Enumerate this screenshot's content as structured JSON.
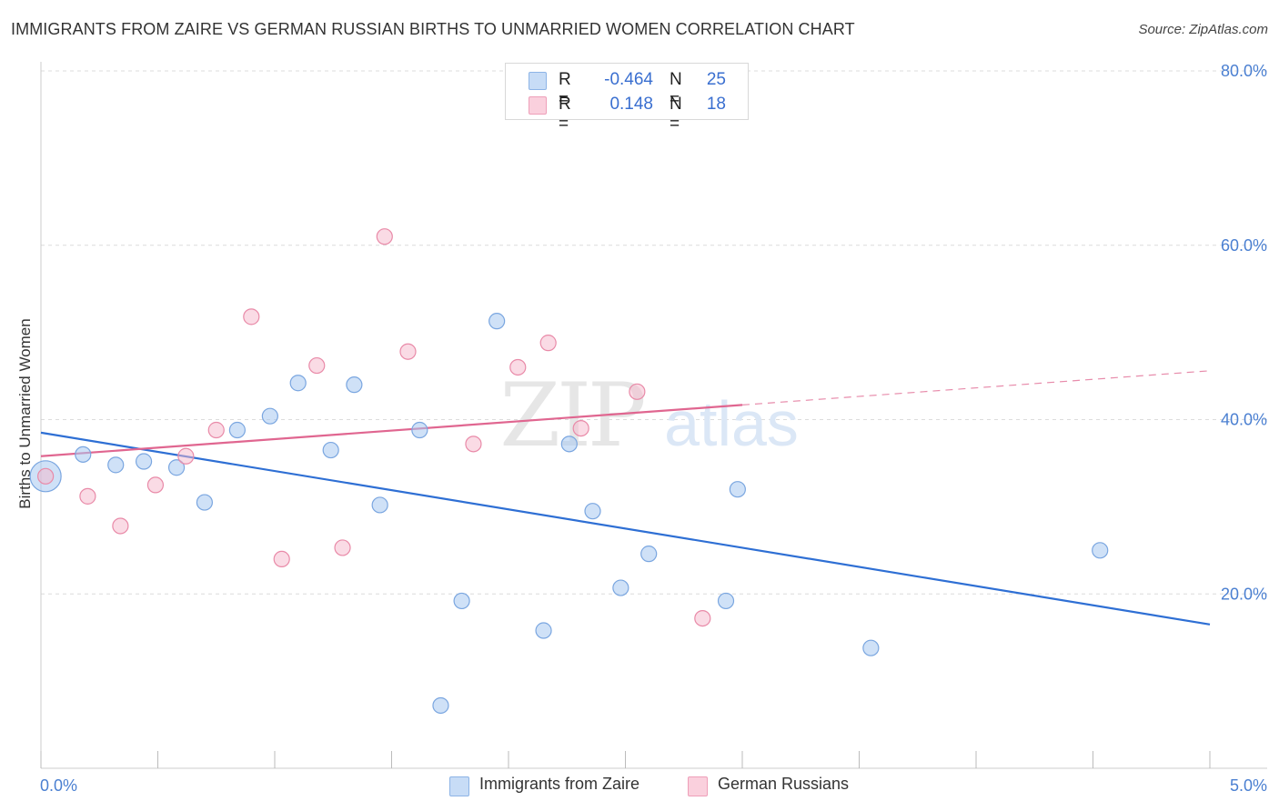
{
  "chart_data": {
    "type": "scatter",
    "title": "IMMIGRANTS FROM ZAIRE VS GERMAN RUSSIAN BIRTHS TO UNMARRIED WOMEN CORRELATION CHART",
    "source": "Source: ZipAtlas.com",
    "xlabel": "",
    "ylabel": "Births to Unmarried Women",
    "xlim": [
      0,
      5
    ],
    "ylim": [
      0,
      80
    ],
    "x_tick_labels": [
      "0.0%",
      "5.0%"
    ],
    "y_ticks": [
      20,
      40,
      60,
      80
    ],
    "y_tick_labels": [
      "20.0%",
      "40.0%",
      "60.0%",
      "80.0%"
    ],
    "grid": true,
    "watermark": "ZIPatlas",
    "legend": [
      {
        "name": "Immigrants from Zaire",
        "r_label": "R =",
        "r": "-0.464",
        "n_label": "N =",
        "n": "25",
        "color": "#a8c8f0"
      },
      {
        "name": "German Russians",
        "r_label": "R =",
        "r": "0.148",
        "n_label": "N =",
        "n": "18",
        "color": "#f5b8cb"
      }
    ],
    "series": [
      {
        "name": "Immigrants from Zaire",
        "color": "#a8c8f0",
        "stroke": "#7aa6e0",
        "trend_color": "#2e6fd4",
        "trend": {
          "x0": 0.0,
          "y0": 38.5,
          "x1": 5.0,
          "y1": 16.5,
          "solid_until": 5.0
        },
        "points": [
          {
            "x": 0.02,
            "y": 33.5,
            "big": true
          },
          {
            "x": 0.18,
            "y": 36.0
          },
          {
            "x": 0.32,
            "y": 34.8
          },
          {
            "x": 0.44,
            "y": 35.2
          },
          {
            "x": 0.58,
            "y": 34.5
          },
          {
            "x": 0.7,
            "y": 30.5
          },
          {
            "x": 0.84,
            "y": 38.8
          },
          {
            "x": 0.98,
            "y": 40.4
          },
          {
            "x": 1.1,
            "y": 44.2
          },
          {
            "x": 1.24,
            "y": 36.5
          },
          {
            "x": 1.34,
            "y": 44.0
          },
          {
            "x": 1.45,
            "y": 30.2
          },
          {
            "x": 1.62,
            "y": 38.8
          },
          {
            "x": 1.71,
            "y": 7.2
          },
          {
            "x": 1.8,
            "y": 19.2
          },
          {
            "x": 1.95,
            "y": 51.3
          },
          {
            "x": 2.15,
            "y": 15.8
          },
          {
            "x": 2.26,
            "y": 37.2
          },
          {
            "x": 2.36,
            "y": 29.5
          },
          {
            "x": 2.48,
            "y": 20.7
          },
          {
            "x": 2.6,
            "y": 24.6
          },
          {
            "x": 2.93,
            "y": 19.2
          },
          {
            "x": 2.98,
            "y": 32.0
          },
          {
            "x": 3.55,
            "y": 13.8
          },
          {
            "x": 4.53,
            "y": 25.0
          }
        ]
      },
      {
        "name": "German Russians",
        "color": "#f5b8cb",
        "stroke": "#e98aa8",
        "trend_color": "#e06690",
        "trend": {
          "x0": 0.0,
          "y0": 35.8,
          "x1": 5.0,
          "y1": 45.6,
          "solid_until": 3.0
        },
        "points": [
          {
            "x": 0.02,
            "y": 33.5
          },
          {
            "x": 0.2,
            "y": 31.2
          },
          {
            "x": 0.34,
            "y": 27.8
          },
          {
            "x": 0.49,
            "y": 32.5
          },
          {
            "x": 0.62,
            "y": 35.8
          },
          {
            "x": 0.75,
            "y": 38.8
          },
          {
            "x": 0.9,
            "y": 51.8
          },
          {
            "x": 1.03,
            "y": 24.0
          },
          {
            "x": 1.18,
            "y": 46.2
          },
          {
            "x": 1.29,
            "y": 25.3
          },
          {
            "x": 1.47,
            "y": 61.0
          },
          {
            "x": 1.57,
            "y": 47.8
          },
          {
            "x": 1.85,
            "y": 37.2
          },
          {
            "x": 2.04,
            "y": 46.0
          },
          {
            "x": 2.17,
            "y": 48.8
          },
          {
            "x": 2.31,
            "y": 39.0
          },
          {
            "x": 2.55,
            "y": 43.2
          },
          {
            "x": 2.83,
            "y": 17.2
          }
        ]
      }
    ]
  }
}
